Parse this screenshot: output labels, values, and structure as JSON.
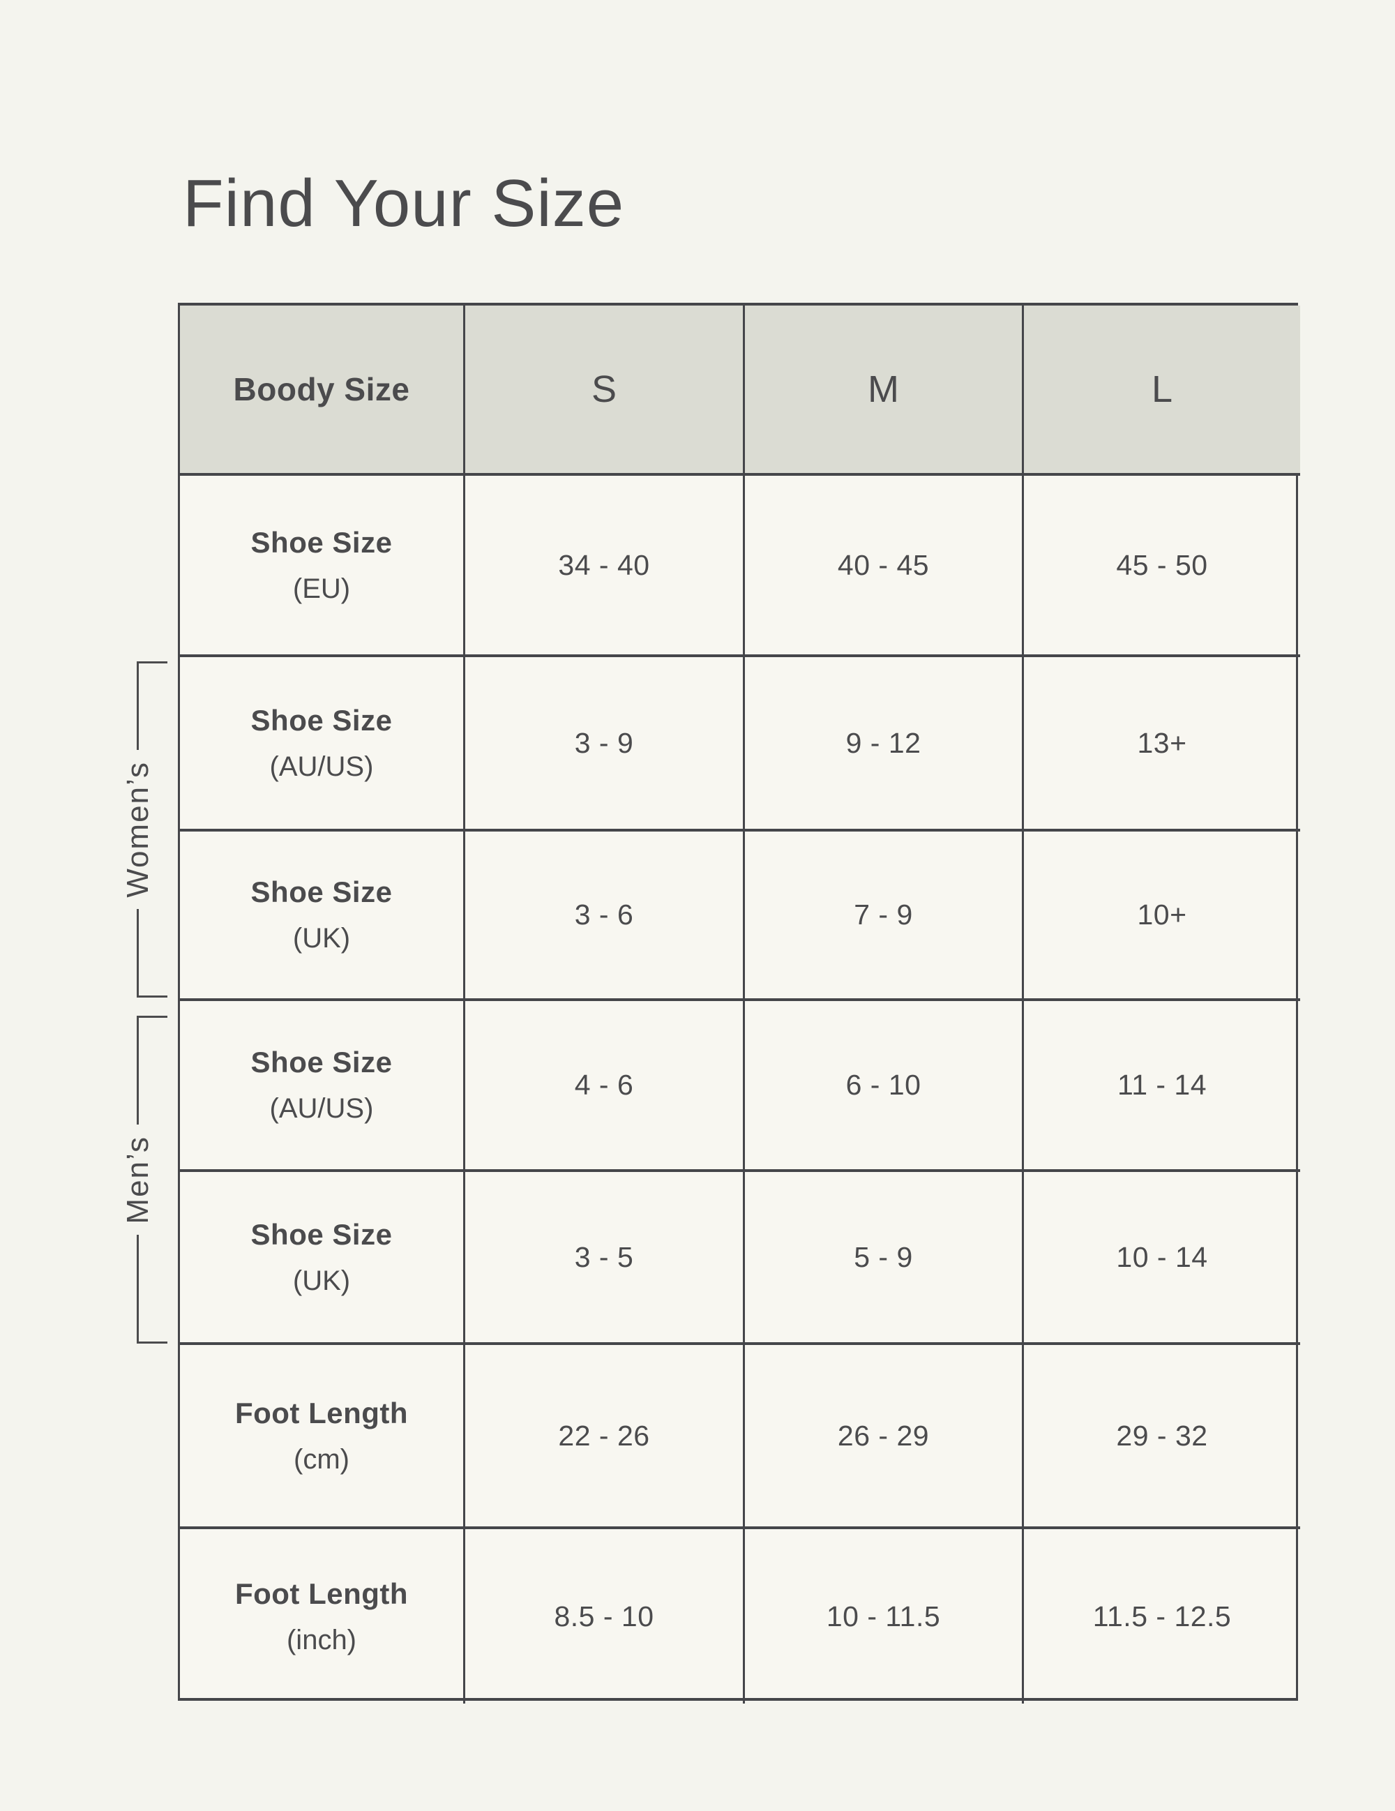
{
  "colors": {
    "page-bg": "#f4f4ee",
    "cell-bg": "#f8f7f1",
    "header-bg": "#dbdcd3",
    "line": "#45464a",
    "text": "#4b4b4d"
  },
  "page": {
    "title": "Find Your Size"
  },
  "groups": {
    "womens": "Women’s",
    "mens": "Men’s"
  },
  "size_table": {
    "header": {
      "corner": "Boody Size",
      "columns": [
        "S",
        "M",
        "L"
      ]
    },
    "rows": [
      {
        "label": "Shoe Size",
        "unit": "(EU)",
        "group": "",
        "values": [
          "34 - 40",
          "40 - 45",
          "45 - 50"
        ]
      },
      {
        "label": "Shoe Size",
        "unit": "(AU/US)",
        "group": "Women’s",
        "values": [
          "3 - 9",
          "9 - 12",
          "13+"
        ]
      },
      {
        "label": "Shoe Size",
        "unit": "(UK)",
        "group": "Women’s",
        "values": [
          "3 - 6",
          "7 - 9",
          "10+"
        ]
      },
      {
        "label": "Shoe Size",
        "unit": "(AU/US)",
        "group": "Men’s",
        "values": [
          "4 - 6",
          "6 - 10",
          "11 - 14"
        ]
      },
      {
        "label": "Shoe Size",
        "unit": "(UK)",
        "group": "Men’s",
        "values": [
          "3 - 5",
          "5 - 9",
          "10 - 14"
        ]
      },
      {
        "label": "Foot Length",
        "unit": "(cm)",
        "group": "",
        "values": [
          "22 - 26",
          "26 - 29",
          "29 - 32"
        ]
      },
      {
        "label": "Foot Length",
        "unit": "(inch)",
        "group": "",
        "values": [
          "8.5 - 10",
          "10 - 11.5",
          "11.5 - 12.5"
        ]
      }
    ]
  }
}
